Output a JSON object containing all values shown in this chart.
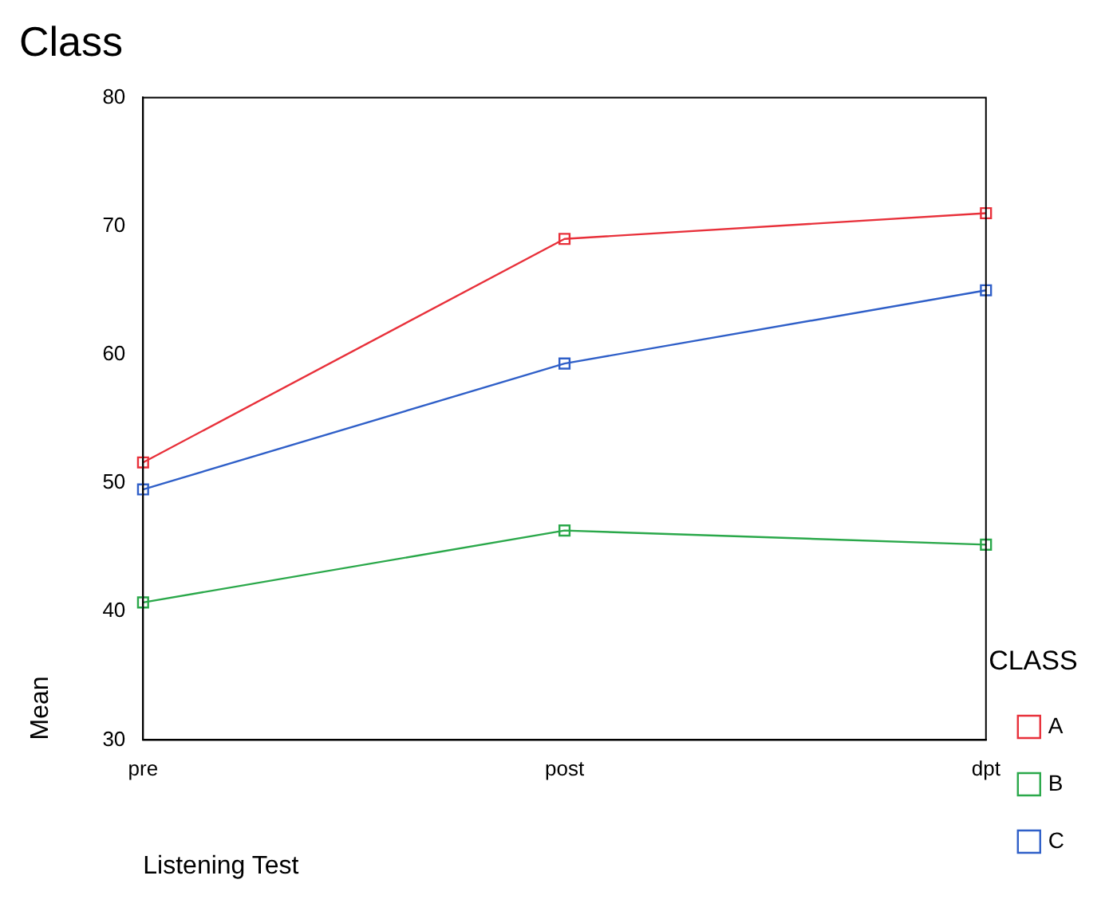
{
  "chart_data": {
    "type": "line",
    "title": "Class",
    "xlabel": "Listening Test",
    "ylabel": "Mean",
    "legend_title": "CLASS",
    "categories": [
      "pre",
      "post",
      "dpt"
    ],
    "series": [
      {
        "name": "A",
        "color": "#e8303a",
        "values": [
          51.6,
          69.0,
          71.0
        ]
      },
      {
        "name": "B",
        "color": "#2aa84a",
        "values": [
          40.7,
          46.3,
          45.2
        ]
      },
      {
        "name": "C",
        "color": "#2f5fc8",
        "values": [
          49.5,
          59.3,
          65.0
        ]
      }
    ],
    "ylim": [
      30,
      80
    ],
    "yticks": [
      30,
      40,
      50,
      60,
      70,
      80
    ],
    "grid": false,
    "legend": "right",
    "marker": "square",
    "line_style": "solid"
  }
}
